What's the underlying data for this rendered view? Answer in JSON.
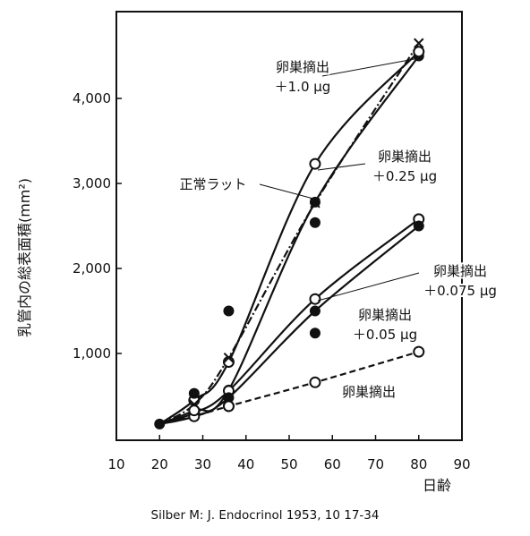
{
  "chart_data": {
    "type": "line",
    "xlabel": "日齢",
    "ylabel": "乳管内の総表面積(mm²)",
    "xlim": [
      10,
      90
    ],
    "ylim": [
      0,
      4000
    ],
    "x_ticks": [
      "10",
      "20",
      "30",
      "40",
      "50",
      "60",
      "70",
      "80",
      "90"
    ],
    "y_ticks": [
      "1,000",
      "2,000",
      "3,000",
      "4,000"
    ],
    "grid": false,
    "series": [
      {
        "name": "卵巣摘出 +1.0 μg",
        "line": "solid",
        "marker": "filled-circle",
        "x": [
          20,
          28,
          36,
          56,
          80
        ],
        "y": [
          170,
          330,
          570,
          2780,
          4500
        ]
      },
      {
        "name": "卵巣摘出 +0.25 μg",
        "line": "solid",
        "marker": "open-circle",
        "x": [
          20,
          28,
          36,
          56,
          80
        ],
        "y": [
          170,
          450,
          900,
          3230,
          4550
        ]
      },
      {
        "name": "正常ラット",
        "line": "dash-dot",
        "marker": "cross",
        "x": [
          20,
          28,
          36,
          56,
          80
        ],
        "y": [
          170,
          400,
          950,
          2770,
          4650
        ]
      },
      {
        "name": "卵巣摘出 +0.075 μg",
        "line": "solid",
        "marker": "open-circle",
        "x": [
          20,
          28,
          36,
          56,
          80
        ],
        "y": [
          170,
          300,
          560,
          1640,
          2580
        ]
      },
      {
        "name": "卵巣摘出 +0.05 μg",
        "line": "solid",
        "marker": "filled-circle",
        "x": [
          20,
          28,
          36,
          56,
          80
        ],
        "y": [
          170,
          260,
          480,
          1500,
          2500
        ]
      },
      {
        "name": "卵巣摘出",
        "line": "dashed",
        "marker": "open-circle",
        "x": [
          20,
          28,
          36,
          56,
          80
        ],
        "y": [
          170,
          260,
          380,
          660,
          1020
        ]
      }
    ],
    "scatter_extra": [
      {
        "x": 28,
        "y": 530,
        "marker": "filled-circle"
      },
      {
        "x": 36,
        "y": 1500,
        "marker": "filled-circle"
      },
      {
        "x": 56,
        "y": 2540,
        "marker": "filled-circle"
      },
      {
        "x": 56,
        "y": 1240,
        "marker": "filled-circle"
      },
      {
        "x": 36,
        "y": 380,
        "marker": "open-circle"
      },
      {
        "x": 28,
        "y": 330,
        "marker": "open-circle"
      }
    ],
    "annotations": [
      {
        "lines": [
          "卵巣摘出",
          "＋1.0 μg"
        ]
      },
      {
        "lines": [
          "卵巣摘出",
          "＋0.25 μg"
        ]
      },
      {
        "lines": [
          "正常ラット"
        ]
      },
      {
        "lines": [
          "卵巣摘出",
          "＋0.075 μg"
        ]
      },
      {
        "lines": [
          "卵巣摘出",
          "＋0.05 μg"
        ]
      },
      {
        "lines": [
          "卵巣摘出"
        ]
      }
    ]
  },
  "source": "Silber M: J. Endocrinol 1953, 10 17-34"
}
